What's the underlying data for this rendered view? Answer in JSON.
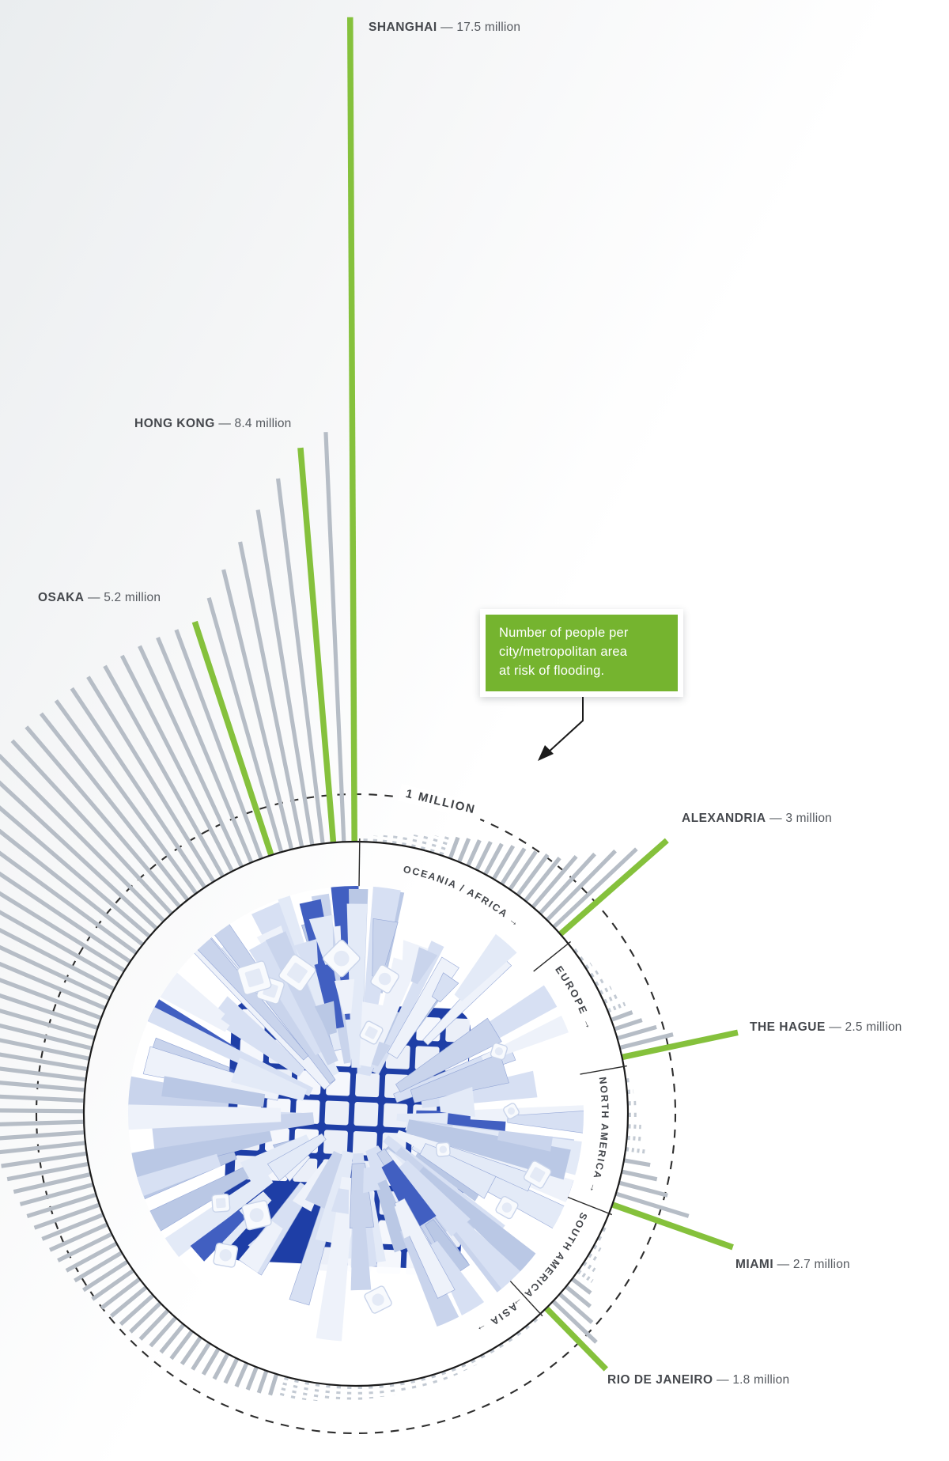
{
  "callout": {
    "lines": [
      "Number of people per",
      "city/metropolitan area",
      "at risk of flooding."
    ],
    "background": "#75b42f"
  },
  "colors": {
    "bar_gray": "#b6bdc6",
    "bar_dotted": "#c3cad3",
    "bar_green": "#85c13c",
    "ring_stroke": "#1b1b1b",
    "dash_stroke": "#2e2e2e",
    "separator": "#2a2a2a",
    "city_streets": "#1e3ea6",
    "city_accent": "#415fc1",
    "city_palette": [
      "#eef2fa",
      "#e3eaf7",
      "#d7e0f3",
      "#c9d4ec",
      "#bac8e5"
    ],
    "rooftop_fill": "#f8fafd",
    "rooftop_stroke": "#c9d4ea"
  },
  "chart_data": {
    "type": "radial-bar",
    "annotation": "Number of people per city/metropolitan area at risk of flooding.",
    "unit": "million people per city/metropolitan area",
    "reference_ring": {
      "label": "1 MILLION",
      "value_million": 1
    },
    "highlighted_cities": [
      {
        "city": "SHANGHAI",
        "value_million": 17.5,
        "value_label": "17.5 million"
      },
      {
        "city": "HONG KONG",
        "value_million": 8.4,
        "value_label": "8.4 million"
      },
      {
        "city": "OSAKA",
        "value_million": 5.2,
        "value_label": "5.2 million"
      },
      {
        "city": "ALEXANDRIA",
        "value_million": 3,
        "value_label": "3 million"
      },
      {
        "city": "THE HAGUE",
        "value_million": 2.5,
        "value_label": "2.5 million"
      },
      {
        "city": "MIAMI",
        "value_million": 2.7,
        "value_label": "2.7 million"
      },
      {
        "city": "RIO DE JANEIRO",
        "value_million": 1.8,
        "value_label": "1.8 million"
      }
    ],
    "sections": [
      {
        "name": "ASIA",
        "ring_label": "ASIA →",
        "start_deg": 139,
        "end_deg": 359.7,
        "bars": [
          0.05,
          0.06,
          0.07,
          0.08,
          0.09,
          0.1,
          0.11,
          0.12,
          0.13,
          0.15,
          0.16,
          0.17,
          0.18,
          0.2,
          0.21,
          0.23,
          0.24,
          0.26,
          0.28,
          0.3,
          0.32,
          0.34,
          0.36,
          0.38,
          0.4,
          0.43,
          0.45,
          0.48,
          0.5,
          0.53,
          0.56,
          0.59,
          0.62,
          0.65,
          0.68,
          0.72,
          0.75,
          0.79,
          0.83,
          0.87,
          0.91,
          0.95,
          1.0,
          1.05,
          1.1,
          1.15,
          1.2,
          1.26,
          1.32,
          1.38,
          1.45,
          1.52,
          1.59,
          1.66,
          1.74,
          1.82,
          1.9,
          1.99,
          2.08,
          2.18,
          2.28,
          2.38,
          2.49,
          2.6,
          2.72,
          2.84,
          2.97,
          3.1,
          3.24,
          3.38,
          3.53,
          3.68,
          3.84,
          4.0,
          4.17,
          4.34,
          4.52,
          4.7,
          4.85,
          4.95,
          4.98,
          5.0,
          5.02,
          5.05,
          5.07,
          5.09,
          5.11,
          5.13,
          5.15,
          5.16,
          5.17,
          {
            "city": "OSAKA",
            "v": 5.2
          },
          5.6,
          6.1,
          6.6,
          7.2,
          7.8,
          {
            "city": "HONG KONG",
            "v": 8.4
          },
          8.7,
          {
            "city": "SHANGHAI",
            "v": 17.5
          }
        ]
      },
      {
        "name": "OCEANIA / AFRICA",
        "ring_label": "OCEANIA / AFRICA →",
        "start_deg": 2,
        "end_deg": 48.7,
        "bars": [
          0.1,
          0.12,
          0.15,
          0.18,
          0.22,
          0.26,
          0.3,
          0.35,
          0.4,
          0.46,
          0.52,
          0.58,
          0.65,
          0.72,
          0.8,
          0.88,
          0.96,
          1.05,
          1.15,
          1.4,
          1.7,
          2.05,
          2.4,
          {
            "city": "ALEXANDRIA",
            "v": 3
          }
        ]
      },
      {
        "name": "EUROPE",
        "ring_label": "EUROPE →",
        "start_deg": 53.5,
        "end_deg": 78,
        "bars": [
          0.08,
          0.1,
          0.13,
          0.16,
          0.2,
          0.25,
          0.31,
          0.38,
          0.46,
          0.6,
          0.85,
          1.15,
          {
            "city": "THE HAGUE",
            "v": 2.5
          }
        ]
      },
      {
        "name": "NORTH AMERICA",
        "ring_label": "NORTH AMERICA →",
        "start_deg": 83,
        "end_deg": 109.5,
        "bars": [
          0.09,
          0.12,
          0.16,
          0.21,
          0.27,
          0.34,
          0.42,
          0.55,
          0.75,
          1.05,
          1.6,
          {
            "city": "MIAMI",
            "v": 2.7
          }
        ]
      },
      {
        "name": "SOUTH AMERICA",
        "ring_label": "SOUTH AMERICA →",
        "start_deg": 115,
        "end_deg": 135.6,
        "bars": [
          0.08,
          0.11,
          0.15,
          0.2,
          0.27,
          0.36,
          0.48,
          0.65,
          0.9,
          1.25,
          {
            "city": "RIO DE JANEIRO",
            "v": 1.8
          }
        ]
      }
    ]
  }
}
